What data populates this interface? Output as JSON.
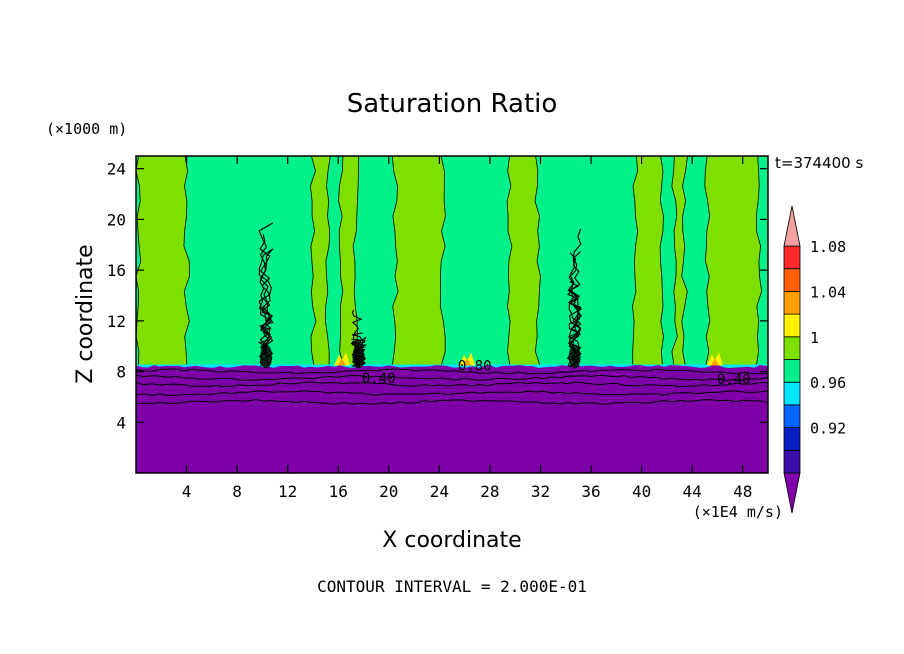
{
  "chart_data": {
    "type": "heatmap",
    "title": "Saturation Ratio",
    "xlabel": "X coordinate",
    "ylabel": "Z coordinate",
    "x_unit": "(×1E4 m/s)",
    "y_unit": "(×1000 m)",
    "time_label": "t=374400 s",
    "footer": "CONTOUR INTERVAL = 2.000E-01",
    "xlim": [
      0,
      50
    ],
    "ylim": [
      0,
      25
    ],
    "x_ticks": [
      4,
      8,
      12,
      16,
      20,
      24,
      28,
      32,
      36,
      40,
      44,
      48
    ],
    "y_ticks": [
      4,
      8,
      12,
      16,
      20,
      24
    ],
    "contour_labels": [
      {
        "text": "0.40",
        "x": 19.2,
        "y": 7.1
      },
      {
        "text": "0.80",
        "x": 26.8,
        "y": 8.1
      },
      {
        "text": "0.40",
        "x": 47.3,
        "y": 7.0
      }
    ],
    "colorbar": {
      "levels": [
        0.92,
        0.96,
        1,
        1.04,
        1.08
      ],
      "labels": [
        "0.92",
        "0.96",
        "1",
        "1.04",
        "1.08"
      ],
      "colors": [
        "#7f00a8",
        "#3b0fa8",
        "#0a1fc0",
        "#0066ff",
        "#00e5ff",
        "#00f08a",
        "#7fe000",
        "#fff200",
        "#ffa000",
        "#ff6000",
        "#ff2a2a",
        "#f5a0a0"
      ]
    },
    "regions": {
      "dry_layer_color": "#7f00a8",
      "dry_layer_top_km": 8.4,
      "saturated_color": "#00f08a",
      "supersaturated_color": "#7fe000"
    },
    "supersaturated_bands_x": [
      [
        0.2,
        4.0
      ],
      [
        14.0,
        15.2
      ],
      [
        16.2,
        17.4
      ],
      [
        20.5,
        24.3
      ],
      [
        29.6,
        31.8
      ],
      [
        39.5,
        41.5
      ],
      [
        42.6,
        43.4
      ],
      [
        45.2,
        49.3
      ]
    ],
    "cloud_columns_x": [
      10.3,
      17.6,
      34.7
    ],
    "warm_spots_x": [
      16.3,
      26.2,
      45.8
    ]
  }
}
